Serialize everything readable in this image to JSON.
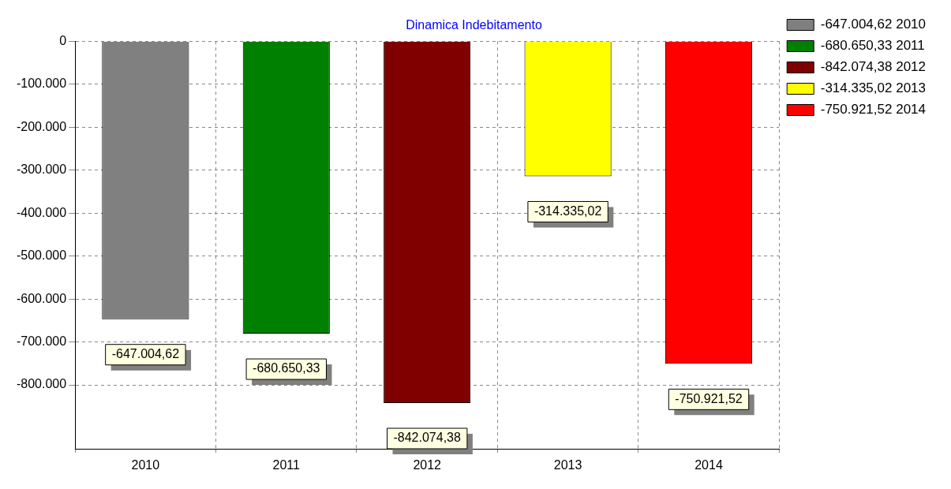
{
  "chart_data": {
    "type": "bar",
    "title": "Dinamica Indebitamento",
    "categories": [
      "2010",
      "2011",
      "2012",
      "2013",
      "2014"
    ],
    "series": [
      {
        "name": "-647.004,62 2010",
        "color": "#808080",
        "values": [
          -647004.62,
          null,
          null,
          null,
          null
        ],
        "value_labels": [
          "-647.004,62",
          null,
          null,
          null,
          null
        ]
      },
      {
        "name": "-680.650,33 2011",
        "color": "#008000",
        "values": [
          null,
          -680650.33,
          null,
          null,
          null
        ],
        "value_labels": [
          null,
          "-680.650,33",
          null,
          null,
          null
        ]
      },
      {
        "name": "-842.074,38 2012",
        "color": "#800000",
        "values": [
          null,
          null,
          -842074.38,
          null,
          null
        ],
        "value_labels": [
          null,
          null,
          "-842.074,38",
          null,
          null
        ]
      },
      {
        "name": "-314.335,02 2013",
        "color": "#ffff00",
        "values": [
          null,
          null,
          null,
          -314335.02,
          null
        ],
        "value_labels": [
          null,
          null,
          null,
          "-314.335,02",
          null
        ]
      },
      {
        "name": "-750.921,52 2014",
        "color": "#ff0000",
        "values": [
          null,
          null,
          null,
          null,
          -750921.52
        ],
        "value_labels": [
          null,
          null,
          null,
          null,
          "-750.921,52"
        ]
      }
    ],
    "ylim": [
      -950000,
      0
    ],
    "yticks": [
      0,
      {
        "value": -100000,
        "label": "-100.000"
      },
      {
        "value": -200000,
        "label": "-200.000"
      },
      {
        "value": -300000,
        "label": "-300.000"
      },
      {
        "value": -400000,
        "label": "-400.000"
      },
      {
        "value": -500000,
        "label": "-500.000"
      },
      {
        "value": -600000,
        "label": "-600.000"
      },
      {
        "value": -700000,
        "label": "-700.000"
      },
      {
        "value": -800000,
        "label": "-800.000"
      }
    ],
    "grid": true,
    "legend": "top right"
  }
}
